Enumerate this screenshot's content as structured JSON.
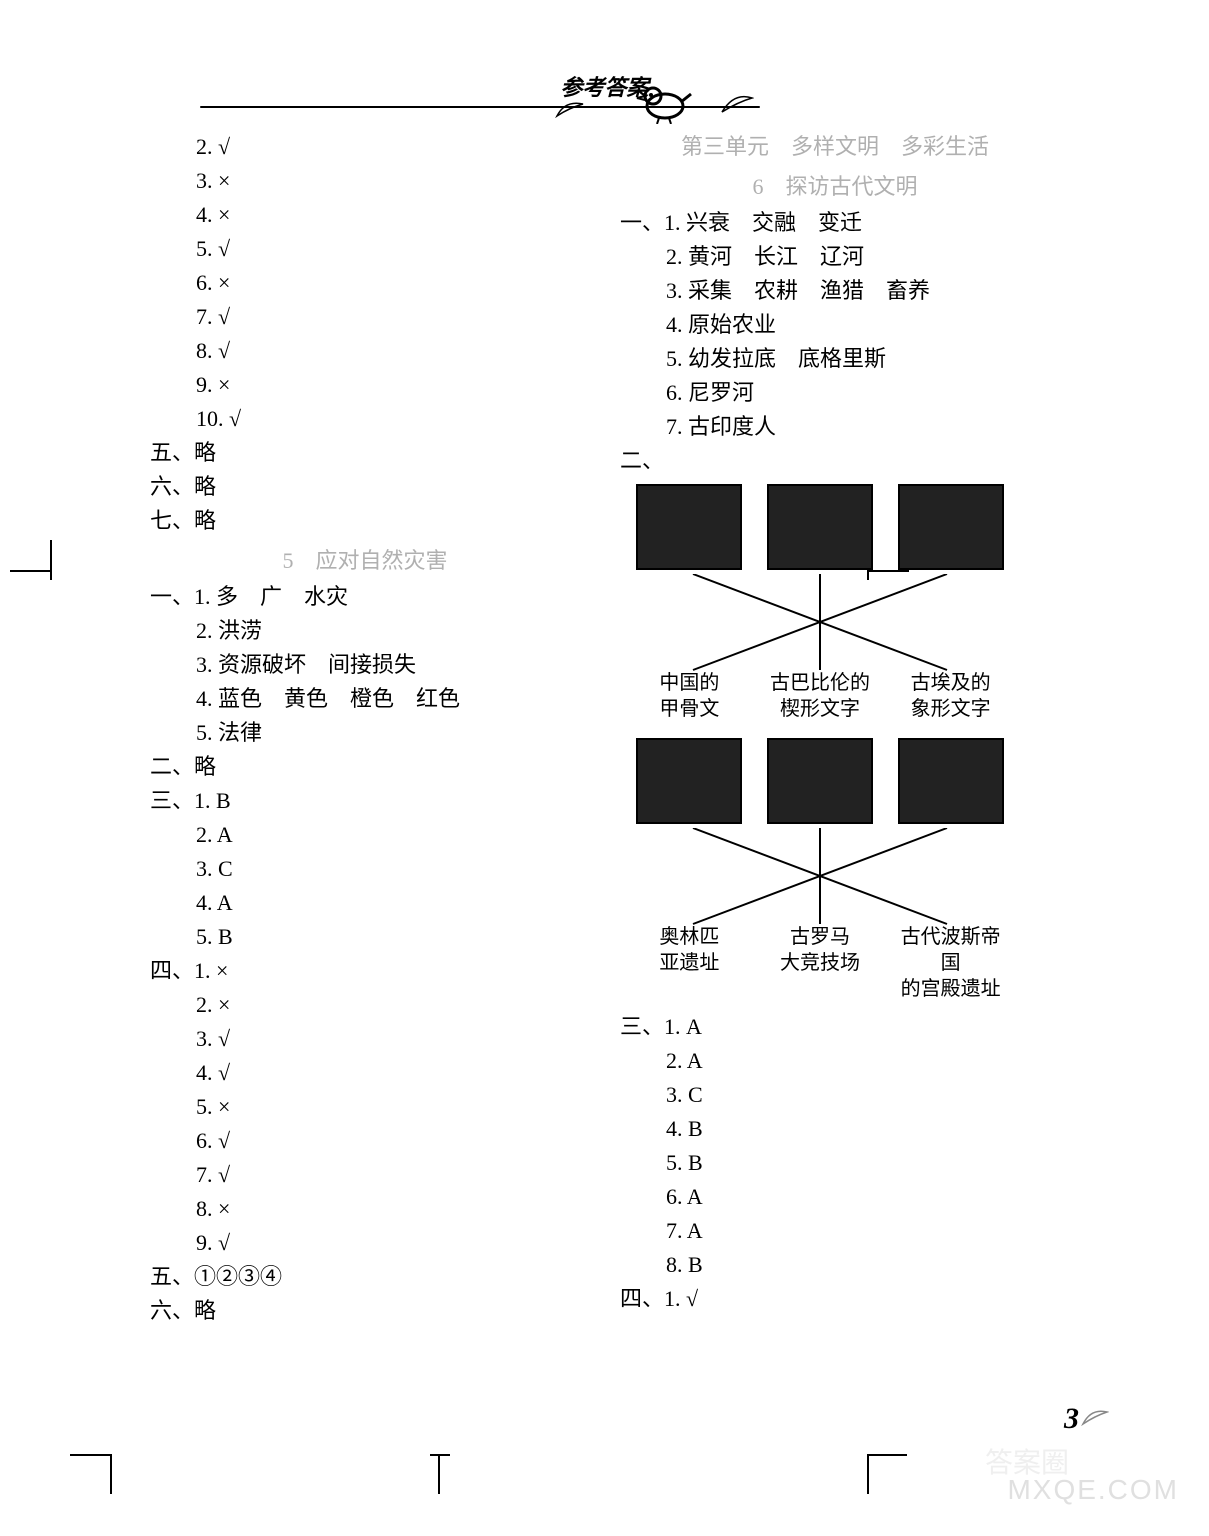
{
  "header": {
    "title": "参考答案"
  },
  "page_number": "3",
  "watermark": {
    "cn": "答案圈",
    "en": "MXQE.COM"
  },
  "left": {
    "tf_continued": [
      {
        "n": "2.",
        "v": "√"
      },
      {
        "n": "3.",
        "v": "×"
      },
      {
        "n": "4.",
        "v": "×"
      },
      {
        "n": "5.",
        "v": "√"
      },
      {
        "n": "6.",
        "v": "×"
      },
      {
        "n": "7.",
        "v": "√"
      },
      {
        "n": "8.",
        "v": "√"
      },
      {
        "n": "9.",
        "v": "×"
      },
      {
        "n": "10.",
        "v": "√"
      }
    ],
    "wu": "五、略",
    "liu": "六、略",
    "qi": "七、略",
    "section5_title": "5　应对自然灾害",
    "s5_yi_lead": "一、1. 多　广　水灾",
    "s5_yi": [
      "2. 洪涝",
      "3. 资源破坏　间接损失",
      "4. 蓝色　黄色　橙色　红色",
      "5. 法律"
    ],
    "s5_er": "二、略",
    "s5_san_lead": "三、1. B",
    "s5_san": [
      "2. A",
      "3. C",
      "4. A",
      "5. B"
    ],
    "s5_si_lead": "四、1. ×",
    "s5_si": [
      "2. ×",
      "3. √",
      "4. √",
      "5. ×",
      "6. √",
      "7. √",
      "8. ×",
      "9. √"
    ],
    "s5_wu": "五、①②③④",
    "s5_liu": "六、略"
  },
  "right": {
    "unit_title": "第三单元　多样文明　多彩生活",
    "lesson_title": "6　探访古代文明",
    "yi_lead": "一、1. 兴衰　交融　变迁",
    "yi": [
      "2. 黄河　长江　辽河",
      "3. 采集　农耕　渔猎　畜养",
      "4. 原始农业",
      "5. 幼发拉底　底格里斯",
      "6. 尼罗河",
      "7. 古印度人"
    ],
    "er_prefix": "二、",
    "match1": {
      "labels": [
        "中国的\n甲骨文",
        "古巴比伦的\n楔形文字",
        "古埃及的\n象形文字"
      ],
      "lines": [
        [
          0,
          2
        ],
        [
          2,
          0
        ],
        [
          1,
          1
        ]
      ]
    },
    "match2": {
      "labels": [
        "奥林匹\n亚遗址",
        "古罗马\n大竞技场",
        "古代波斯帝国\n的宫殿遗址"
      ],
      "lines": [
        [
          0,
          2
        ],
        [
          2,
          0
        ],
        [
          1,
          1
        ]
      ]
    },
    "san_lead": "三、1. A",
    "san": [
      "2. A",
      "3. C",
      "4. B",
      "5. B",
      "6. A",
      "7. A",
      "8. B"
    ],
    "si_lead": "四、1. √"
  },
  "styles": {
    "text_color": "#000000",
    "muted_color": "#b0b0b0",
    "background": "#ffffff",
    "body_fontsize": 22,
    "line_height": 34,
    "img_placeholder_bg": "#222222",
    "line_color": "#000000",
    "line_width": 2
  }
}
